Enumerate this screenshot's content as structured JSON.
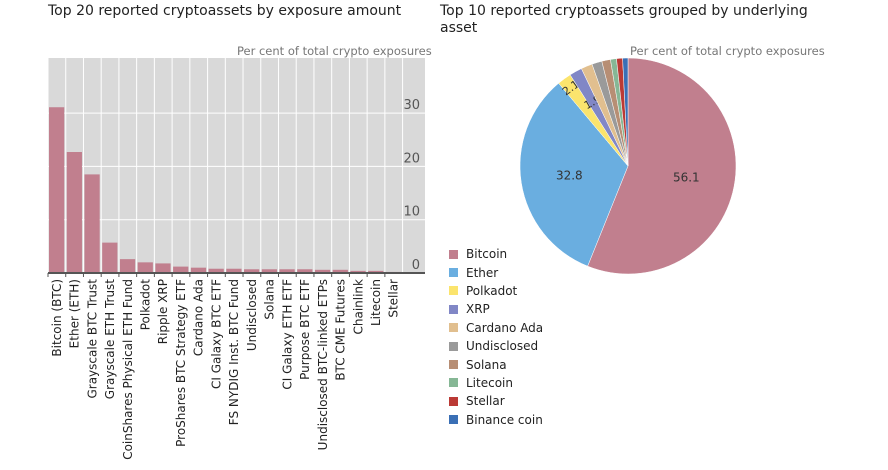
{
  "chart_data": [
    {
      "type": "bar",
      "title": "Top 20 reported cryptoassets by exposure amount",
      "ylabel": "Per cent of total crypto exposures",
      "ylim": [
        0,
        35
      ],
      "yticks": [
        0,
        10,
        20,
        30
      ],
      "grid": true,
      "color": "#c17f8e",
      "categories": [
        "Bitcoin (BTC)",
        "Ether (ETH)",
        "Grayscale BTC Trust",
        "Grayscale ETH Trust",
        "CoinShares Physical ETH Fund",
        "Polkadot",
        "Ripple XRP",
        "ProShares BTC Strategy ETF",
        "Cardano Ada",
        "CI Galaxy BTC ETF",
        "FS NYDIG Inst. BTC Fund",
        "Undisclosed",
        "Solana",
        "CI Galaxy ETH ETF",
        "Purpose BTC ETF",
        "Undisclosed BTC-linked ETPs",
        "BTC CME Futures",
        "Chainlink",
        "Litecoin",
        "Stellar"
      ],
      "values": [
        31.1,
        22.7,
        18.5,
        5.7,
        2.6,
        2.0,
        1.8,
        1.2,
        1.0,
        0.8,
        0.8,
        0.7,
        0.7,
        0.7,
        0.7,
        0.6,
        0.6,
        0.4,
        0.4,
        0.2
      ]
    },
    {
      "type": "pie",
      "title": "Top 10 reported cryptoassets grouped by underlying asset",
      "subtitle": "Per cent of total crypto exposures",
      "legend": "bottom-left",
      "labels": [
        "Bitcoin",
        "Ether",
        "Polkadot",
        "XRP",
        "Cardano Ada",
        "Undisclosed",
        "Solana",
        "Litecoin",
        "Stellar",
        "Binance coin"
      ],
      "values": [
        56.1,
        32.8,
        2.1,
        1.9,
        1.7,
        1.5,
        1.3,
        0.9,
        0.9,
        0.8
      ],
      "data_labels": [
        "56.1",
        "32.8",
        "2.1",
        "1.9",
        "",
        "",
        "",
        "",
        "",
        ""
      ],
      "colors": [
        "#c17f8e",
        "#6aaee0",
        "#fbe46d",
        "#8187c6",
        "#e1bf8f",
        "#9a9a9a",
        "#b78e74",
        "#86b795",
        "#bb3a35",
        "#3a6fb5"
      ]
    }
  ]
}
